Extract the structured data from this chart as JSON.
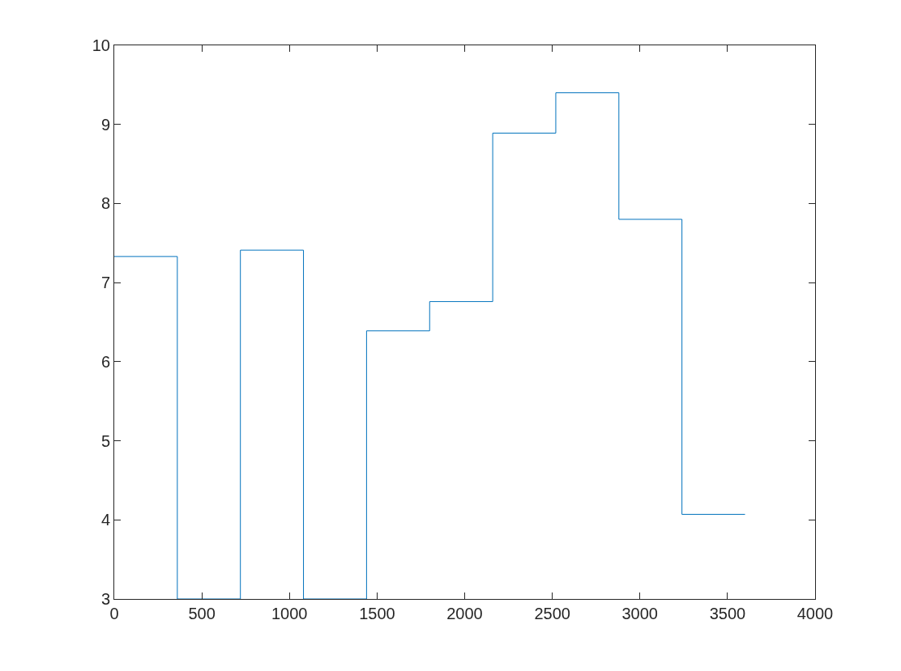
{
  "chart_data": {
    "type": "step",
    "x": [
      0,
      360,
      720,
      1080,
      1440,
      1800,
      2160,
      2520,
      2880,
      3240,
      3600
    ],
    "values": [
      7.33,
      3,
      7.41,
      3,
      6.39,
      6.76,
      8.89,
      9.4,
      7.8,
      4.07,
      4.07
    ],
    "color": "#0072bd",
    "xlim": [
      0,
      4000
    ],
    "xticks": [
      0,
      500,
      1000,
      1500,
      2000,
      2500,
      3000,
      3500,
      4000
    ],
    "ylim": [
      3,
      10
    ],
    "yticks": [
      3,
      4,
      5,
      6,
      7,
      8,
      9,
      10
    ]
  }
}
